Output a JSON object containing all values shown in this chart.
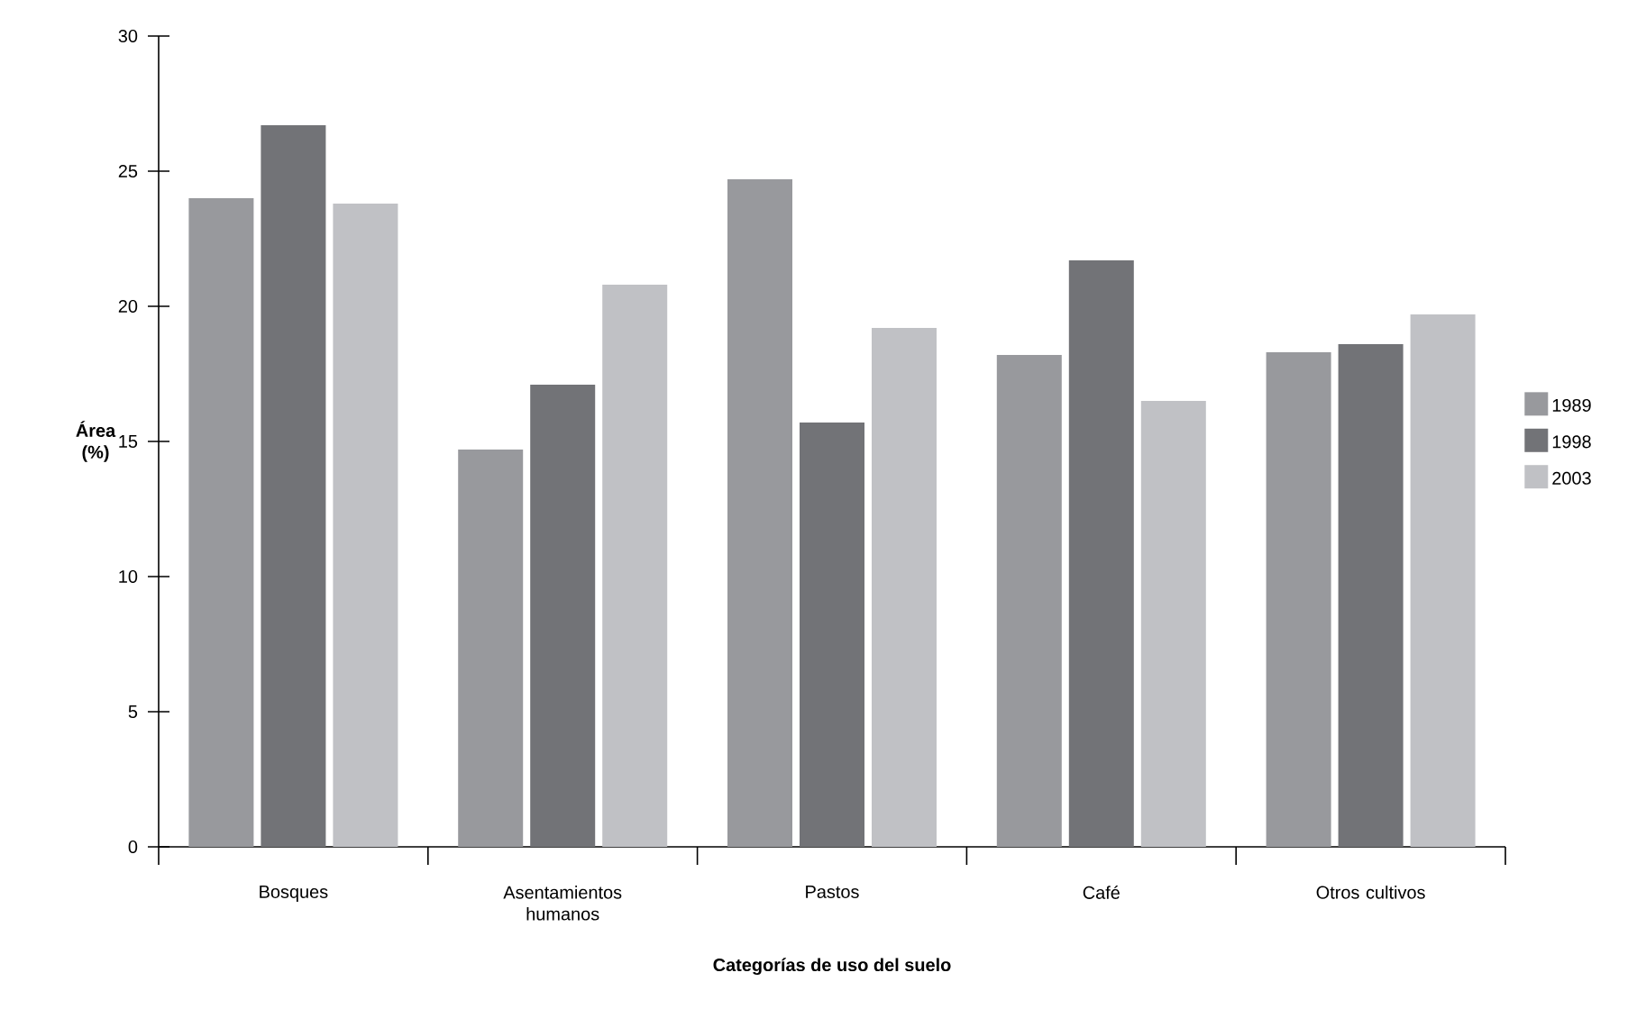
{
  "chart_data": {
    "type": "bar",
    "xlabel": "Categorías de uso del suelo",
    "ylabel": "Área (%)",
    "categories": [
      "Bosques",
      "Asentamientos humanos",
      "Pastos",
      "Café",
      "Otros cultivos"
    ],
    "series": [
      {
        "name": "1989",
        "color": "#98999d",
        "values": [
          24.0,
          14.7,
          24.7,
          18.2,
          18.3
        ]
      },
      {
        "name": "1998",
        "color": "#727377",
        "values": [
          26.7,
          17.1,
          15.7,
          21.7,
          18.6
        ]
      },
      {
        "name": "2003",
        "color": "#c0c1c5",
        "values": [
          23.8,
          20.8,
          19.2,
          16.5,
          19.7
        ]
      }
    ],
    "ylim": [
      0,
      30
    ],
    "yticks": [
      0,
      5,
      10,
      15,
      20,
      25,
      30
    ],
    "grid": false,
    "legend": "right"
  }
}
